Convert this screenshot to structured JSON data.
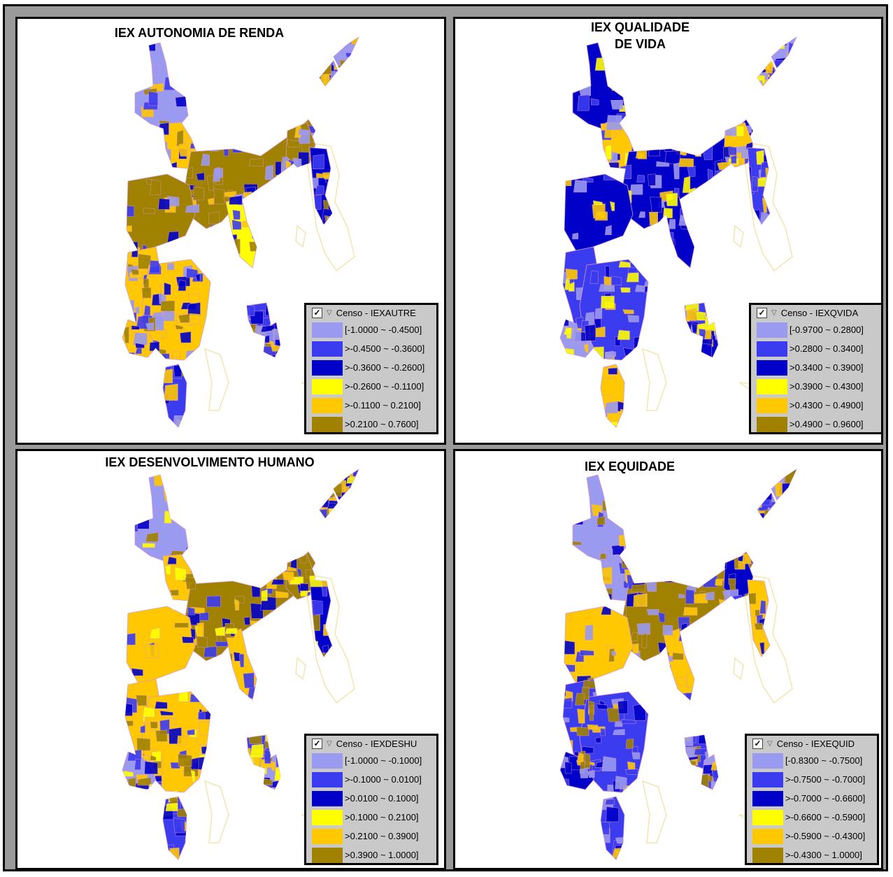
{
  "colors": [
    "#9a9af0",
    "#3b3bf0",
    "#0000c8",
    "#ffff00",
    "#ffc800",
    "#a08200"
  ],
  "outline_color": "#f2e6b0",
  "panels": [
    {
      "title": "IEX AUTONOMIA DE RENDA",
      "legend_title": "Censo - IEXAUTRE",
      "classes": [
        "[-1.0000 ~ -0.4500]",
        ">-0.4500 ~ -0.3600]",
        ">-0.3600 ~ -0.2600]",
        ">-0.2600 ~ -0.1100]",
        ">-0.1100 ~ 0.2100]",
        ">0.2100 ~ 0.7600]"
      ]
    },
    {
      "title": "IEX QUALIDADE\nDE VIDA",
      "legend_title": "Censo - IEXQVIDA",
      "classes": [
        "[-0.9700 ~ 0.2800]",
        ">0.2800 ~ 0.3400]",
        ">0.3400 ~ 0.3900]",
        ">0.3900 ~ 0.4300]",
        ">0.4300 ~ 0.4900]",
        ">0.4900 ~ 0.9600]"
      ]
    },
    {
      "title": "IEX DESENVOLVIMENTO HUMANO",
      "legend_title": "Censo - IEXDESHU",
      "classes": [
        "[-1.0000 ~ -0.1000]",
        ">-0.1000 ~ 0.0100]",
        ">0.0100 ~ 0.1000]",
        ">0.1000 ~ 0.2100]",
        ">0.2100 ~ 0.3900]",
        ">0.3900 ~ 1.0000]"
      ]
    },
    {
      "title": "IEX EQUIDADE",
      "legend_title": "Censo - IEXEQUID",
      "classes": [
        "[-0.8300 ~ -0.7500]",
        ">-0.7500 ~ -0.7000]",
        ">-0.7000 ~ -0.6600]",
        ">-0.6600 ~ -0.5900]",
        ">-0.5900 ~ -0.4300]",
        ">-0.4300 ~ 1.0000]"
      ]
    }
  ]
}
